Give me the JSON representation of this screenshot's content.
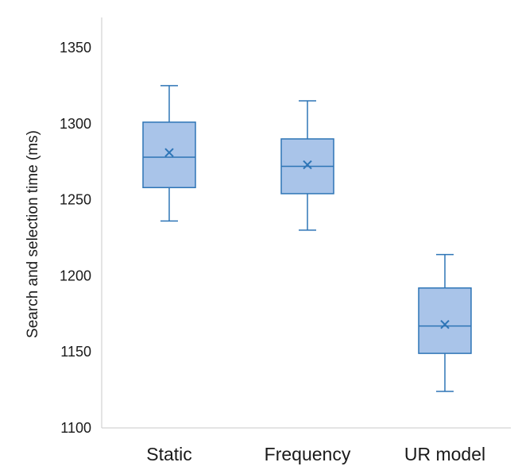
{
  "chart_data": {
    "type": "box",
    "categories": [
      "Static",
      "Frequency",
      "UR model"
    ],
    "ylabel": "Search and selection time (ms)",
    "ylim": [
      1100,
      1350
    ],
    "yticks": [
      1100,
      1150,
      1200,
      1250,
      1300,
      1350
    ],
    "grid": false,
    "series": [
      {
        "boxes": [
          {
            "category": "Static",
            "min": 1236,
            "q1": 1258,
            "median": 1278,
            "q3": 1301,
            "max": 1325,
            "mean": 1281
          },
          {
            "category": "Frequency",
            "min": 1230,
            "q1": 1254,
            "median": 1272,
            "q3": 1290,
            "max": 1315,
            "mean": 1273
          },
          {
            "category": "UR model",
            "min": 1124,
            "q1": 1149,
            "median": 1167,
            "q3": 1192,
            "max": 1214,
            "mean": 1168
          }
        ]
      }
    ],
    "colors": {
      "box_fill": "#a9c4e9",
      "box_stroke": "#2e75b6",
      "axis": "#c8c8c8"
    }
  }
}
